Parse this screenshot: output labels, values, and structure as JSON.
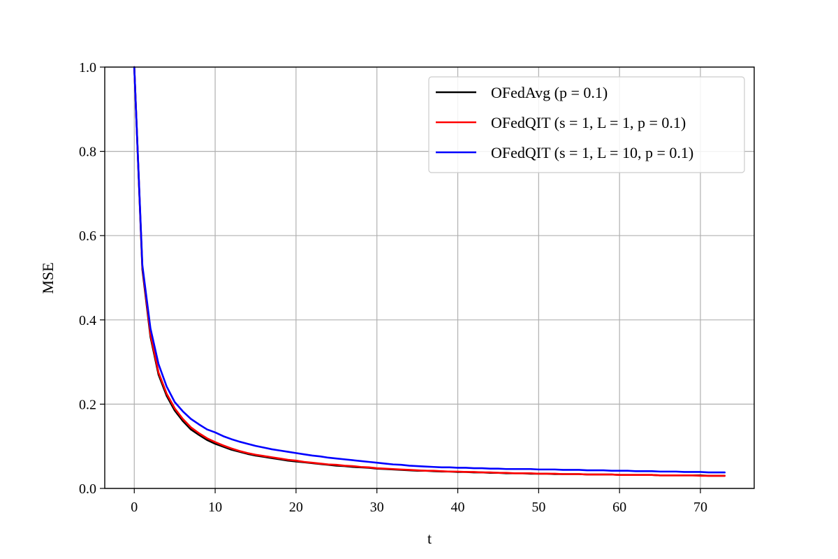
{
  "chart_data": {
    "type": "line",
    "title": "",
    "xlabel": "t",
    "ylabel": "MSE",
    "xlim": [
      -3.65,
      76.65
    ],
    "ylim": [
      0,
      1.0
    ],
    "xticks": [
      0,
      10,
      20,
      30,
      40,
      50,
      60,
      70
    ],
    "yticks": [
      0.0,
      0.2,
      0.4,
      0.6,
      0.8,
      1.0
    ],
    "xtick_labels": [
      "0",
      "10",
      "20",
      "30",
      "40",
      "50",
      "60",
      "70"
    ],
    "ytick_labels": [
      "0.0",
      "0.2",
      "0.4",
      "0.6",
      "0.8",
      "1.0"
    ],
    "grid": true,
    "legend_position": "top-right",
    "x": [
      0,
      1,
      2,
      3,
      4,
      5,
      6,
      7,
      8,
      9,
      10,
      11,
      12,
      13,
      14,
      15,
      16,
      17,
      18,
      19,
      20,
      21,
      22,
      23,
      24,
      25,
      26,
      27,
      28,
      29,
      30,
      31,
      32,
      33,
      34,
      35,
      36,
      37,
      38,
      39,
      40,
      41,
      42,
      43,
      44,
      45,
      46,
      47,
      48,
      49,
      50,
      51,
      52,
      53,
      54,
      55,
      56,
      57,
      58,
      59,
      60,
      61,
      62,
      63,
      64,
      65,
      66,
      67,
      68,
      69,
      70,
      71,
      72,
      73
    ],
    "series": [
      {
        "name": "OFedAvg (p = 0.1)",
        "color": "#000000",
        "values": [
          1.0,
          0.52,
          0.36,
          0.27,
          0.22,
          0.185,
          0.16,
          0.14,
          0.127,
          0.115,
          0.106,
          0.099,
          0.092,
          0.087,
          0.082,
          0.078,
          0.075,
          0.072,
          0.069,
          0.066,
          0.064,
          0.062,
          0.06,
          0.058,
          0.056,
          0.054,
          0.053,
          0.051,
          0.05,
          0.049,
          0.047,
          0.046,
          0.045,
          0.044,
          0.043,
          0.042,
          0.042,
          0.041,
          0.04,
          0.04,
          0.039,
          0.039,
          0.038,
          0.038,
          0.037,
          0.037,
          0.036,
          0.036,
          0.036,
          0.035,
          0.035,
          0.035,
          0.034,
          0.034,
          0.034,
          0.034,
          0.033,
          0.033,
          0.033,
          0.033,
          0.032,
          0.032,
          0.032,
          0.032,
          0.032,
          0.031,
          0.031,
          0.031,
          0.031,
          0.031,
          0.031,
          0.03,
          0.03,
          0.03
        ]
      },
      {
        "name": "OFedQIT (s = 1, L = 1, p = 0.1)",
        "color": "#ff0000",
        "values": [
          1.0,
          0.525,
          0.365,
          0.275,
          0.225,
          0.19,
          0.165,
          0.145,
          0.131,
          0.119,
          0.11,
          0.102,
          0.095,
          0.089,
          0.084,
          0.08,
          0.077,
          0.074,
          0.071,
          0.068,
          0.066,
          0.063,
          0.061,
          0.059,
          0.057,
          0.056,
          0.054,
          0.053,
          0.051,
          0.05,
          0.048,
          0.047,
          0.046,
          0.045,
          0.044,
          0.043,
          0.042,
          0.042,
          0.041,
          0.04,
          0.04,
          0.039,
          0.039,
          0.038,
          0.038,
          0.037,
          0.037,
          0.036,
          0.036,
          0.036,
          0.035,
          0.035,
          0.035,
          0.034,
          0.034,
          0.034,
          0.033,
          0.033,
          0.033,
          0.033,
          0.032,
          0.032,
          0.032,
          0.032,
          0.032,
          0.031,
          0.031,
          0.031,
          0.031,
          0.031,
          0.03,
          0.03,
          0.03,
          0.03
        ]
      },
      {
        "name": "OFedQIT (s = 1, L = 10, p = 0.1)",
        "color": "#0000ff",
        "values": [
          1.0,
          0.53,
          0.38,
          0.295,
          0.242,
          0.205,
          0.183,
          0.165,
          0.152,
          0.14,
          0.133,
          0.124,
          0.117,
          0.111,
          0.106,
          0.101,
          0.097,
          0.093,
          0.09,
          0.087,
          0.084,
          0.081,
          0.078,
          0.076,
          0.073,
          0.071,
          0.069,
          0.067,
          0.065,
          0.063,
          0.061,
          0.059,
          0.057,
          0.056,
          0.054,
          0.053,
          0.052,
          0.051,
          0.05,
          0.05,
          0.049,
          0.049,
          0.048,
          0.048,
          0.047,
          0.047,
          0.046,
          0.046,
          0.046,
          0.046,
          0.045,
          0.045,
          0.045,
          0.044,
          0.044,
          0.044,
          0.043,
          0.043,
          0.043,
          0.042,
          0.042,
          0.042,
          0.041,
          0.041,
          0.041,
          0.04,
          0.04,
          0.04,
          0.039,
          0.039,
          0.039,
          0.038,
          0.038,
          0.038
        ]
      }
    ]
  }
}
